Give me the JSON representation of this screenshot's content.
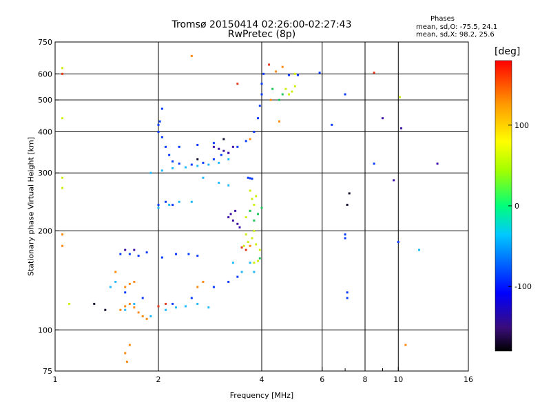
{
  "chart_data": {
    "type": "scatter",
    "title": "Tromsø 20150414 02:26:00-02:27:43",
    "subtitle": "RwPretec (8p)",
    "xlabel": "Frequency [MHz]",
    "ylabel": "Stationary phase Virtual Height [km]",
    "x_scale": "log",
    "y_scale": "log",
    "xlim": [
      1,
      16
    ],
    "ylim": [
      75,
      750
    ],
    "x_ticks": [
      1,
      2,
      4,
      6,
      8,
      10,
      16
    ],
    "x_tick_labels": [
      "1",
      "2",
      "4",
      "6",
      "8",
      "10",
      "16"
    ],
    "x_minor_ticks": [
      7,
      9
    ],
    "y_ticks": [
      75,
      100,
      200,
      300,
      400,
      500,
      600,
      750
    ],
    "y_tick_labels": [
      "75",
      "100",
      "200",
      "300",
      "400",
      "500",
      "600",
      "750"
    ],
    "grid": true,
    "phase_stats": {
      "title": "Phases",
      "o_mode": "mean, sd,O:  -75.5, 24.1",
      "x_mode": "mean, sd,X:  98.2, 25.6"
    },
    "colorbar": {
      "unit": "[deg]",
      "range": [
        -180,
        180
      ],
      "ticks": [
        100,
        0,
        -100
      ],
      "tick_labels": [
        "100",
        "0",
        "-100"
      ]
    },
    "series": [
      {
        "color": "#0a3cff",
        "points": [
          [
            1.55,
            170
          ],
          [
            1.65,
            170
          ],
          [
            1.75,
            168
          ],
          [
            1.85,
            172
          ],
          [
            2.05,
            166
          ],
          [
            2.25,
            170
          ],
          [
            2.45,
            170
          ],
          [
            2.6,
            168
          ],
          [
            1.6,
            130
          ],
          [
            1.8,
            125
          ],
          [
            2.2,
            120
          ],
          [
            2.5,
            125
          ],
          [
            2.9,
            135
          ],
          [
            3.2,
            140
          ],
          [
            3.4,
            145
          ],
          [
            2.05,
            385
          ],
          [
            2.1,
            360
          ],
          [
            2.15,
            340
          ],
          [
            2.2,
            325
          ],
          [
            2.3,
            320
          ],
          [
            2.5,
            318
          ],
          [
            2.7,
            322
          ],
          [
            2.9,
            330
          ],
          [
            3.05,
            340
          ],
          [
            3.2,
            345
          ],
          [
            3.4,
            360
          ],
          [
            3.6,
            375
          ],
          [
            3.8,
            400
          ],
          [
            3.9,
            440
          ],
          [
            3.95,
            480
          ],
          [
            4.0,
            520
          ],
          [
            4.0,
            560
          ],
          [
            4.05,
            600
          ],
          [
            2.3,
            360
          ],
          [
            2.6,
            365
          ],
          [
            2.9,
            370
          ],
          [
            2.05,
            470
          ],
          [
            2.02,
            430
          ],
          [
            2.0,
            420
          ],
          [
            2.0,
            400
          ],
          [
            3.65,
            290
          ],
          [
            3.7,
            289
          ],
          [
            3.75,
            288
          ],
          [
            7.0,
            195
          ],
          [
            7.0,
            190
          ],
          [
            7.1,
            125
          ],
          [
            7.1,
            130
          ],
          [
            4.8,
            595
          ],
          [
            5.1,
            595
          ],
          [
            5.9,
            605
          ],
          [
            6.4,
            420
          ],
          [
            7.0,
            520
          ],
          [
            8.5,
            320
          ],
          [
            10.0,
            185
          ],
          [
            2.0,
            240
          ],
          [
            2.1,
            245
          ],
          [
            2.2,
            240
          ]
        ]
      },
      {
        "color": "#1fb9ff",
        "points": [
          [
            1.9,
            300
          ],
          [
            2.05,
            305
          ],
          [
            2.2,
            310
          ],
          [
            2.4,
            312
          ],
          [
            2.6,
            315
          ],
          [
            2.8,
            318
          ],
          [
            3.0,
            322
          ],
          [
            3.2,
            330
          ],
          [
            2.0,
            235
          ],
          [
            2.15,
            240
          ],
          [
            2.3,
            245
          ],
          [
            2.5,
            245
          ],
          [
            2.1,
            115
          ],
          [
            2.25,
            117
          ],
          [
            2.4,
            118
          ],
          [
            2.6,
            120
          ],
          [
            2.8,
            117
          ],
          [
            3.3,
            160
          ],
          [
            3.5,
            150
          ],
          [
            3.7,
            160
          ],
          [
            3.8,
            150
          ],
          [
            1.6,
            115
          ],
          [
            1.7,
            120
          ],
          [
            1.9,
            110
          ],
          [
            2.7,
            290
          ],
          [
            3.0,
            280
          ],
          [
            3.2,
            275
          ],
          [
            1.45,
            135
          ],
          [
            1.5,
            140
          ],
          [
            11.5,
            175
          ]
        ]
      },
      {
        "color": "#ff8a10",
        "points": [
          [
            1.55,
            115
          ],
          [
            1.6,
            118
          ],
          [
            1.65,
            120
          ],
          [
            1.7,
            117
          ],
          [
            1.75,
            113
          ],
          [
            1.8,
            110
          ],
          [
            1.85,
            108
          ],
          [
            1.6,
            135
          ],
          [
            1.65,
            138
          ],
          [
            1.7,
            140
          ],
          [
            1.6,
            85
          ],
          [
            1.62,
            80
          ],
          [
            1.65,
            90
          ],
          [
            2.6,
            135
          ],
          [
            2.7,
            140
          ],
          [
            3.7,
            380
          ],
          [
            4.25,
            500
          ],
          [
            4.5,
            430
          ],
          [
            4.4,
            610
          ],
          [
            4.6,
            630
          ],
          [
            2.5,
            680
          ],
          [
            1.05,
            195
          ],
          [
            1.05,
            180
          ],
          [
            10.5,
            90
          ],
          [
            3.7,
            180
          ],
          [
            1.5,
            150
          ]
        ]
      },
      {
        "color": "#cfee10",
        "points": [
          [
            3.55,
            180
          ],
          [
            3.65,
            185
          ],
          [
            3.75,
            190
          ],
          [
            3.85,
            182
          ],
          [
            3.95,
            175
          ],
          [
            3.6,
            195
          ],
          [
            3.8,
            200
          ],
          [
            3.6,
            220
          ],
          [
            3.7,
            230
          ],
          [
            3.8,
            240
          ],
          [
            3.75,
            250
          ],
          [
            3.7,
            265
          ],
          [
            3.85,
            255
          ],
          [
            3.8,
            160
          ],
          [
            3.9,
            162
          ],
          [
            4.7,
            540
          ],
          [
            4.9,
            530
          ],
          [
            5.0,
            550
          ],
          [
            4.8,
            520
          ],
          [
            1.05,
            625
          ],
          [
            1.05,
            600
          ],
          [
            1.05,
            440
          ],
          [
            1.05,
            290
          ],
          [
            1.05,
            270
          ],
          [
            1.1,
            120
          ],
          [
            10.1,
            510
          ],
          [
            5.0,
            600
          ]
        ]
      },
      {
        "color": "#3e10a8",
        "points": [
          [
            3.2,
            220
          ],
          [
            3.3,
            215
          ],
          [
            3.4,
            210
          ],
          [
            3.25,
            225
          ],
          [
            3.35,
            230
          ],
          [
            3.45,
            205
          ],
          [
            2.9,
            360
          ],
          [
            3.0,
            355
          ],
          [
            3.1,
            350
          ],
          [
            3.2,
            345
          ],
          [
            3.3,
            360
          ],
          [
            9.0,
            440
          ],
          [
            9.7,
            285
          ],
          [
            10.2,
            410
          ],
          [
            13.0,
            320
          ],
          [
            1.6,
            175
          ],
          [
            1.7,
            175
          ]
        ]
      },
      {
        "color": "#1dc85a",
        "points": [
          [
            3.8,
            215
          ],
          [
            3.9,
            225
          ],
          [
            4.0,
            235
          ],
          [
            4.5,
            500
          ],
          [
            4.3,
            540
          ],
          [
            4.6,
            520
          ],
          [
            3.7,
            230
          ],
          [
            3.95,
            165
          ]
        ]
      },
      {
        "color": "#e53a1c",
        "points": [
          [
            2.1,
            120
          ],
          [
            3.5,
            178
          ],
          [
            3.6,
            175
          ],
          [
            4.2,
            640
          ],
          [
            1.05,
            600
          ],
          [
            8.5,
            605
          ],
          [
            3.4,
            560
          ],
          [
            2.0,
            118
          ]
        ]
      },
      {
        "color": "#101030",
        "points": [
          [
            1.4,
            115
          ],
          [
            1.3,
            120
          ],
          [
            2.6,
            330
          ],
          [
            3.1,
            380
          ],
          [
            7.1,
            240
          ],
          [
            7.2,
            260
          ]
        ]
      }
    ]
  }
}
